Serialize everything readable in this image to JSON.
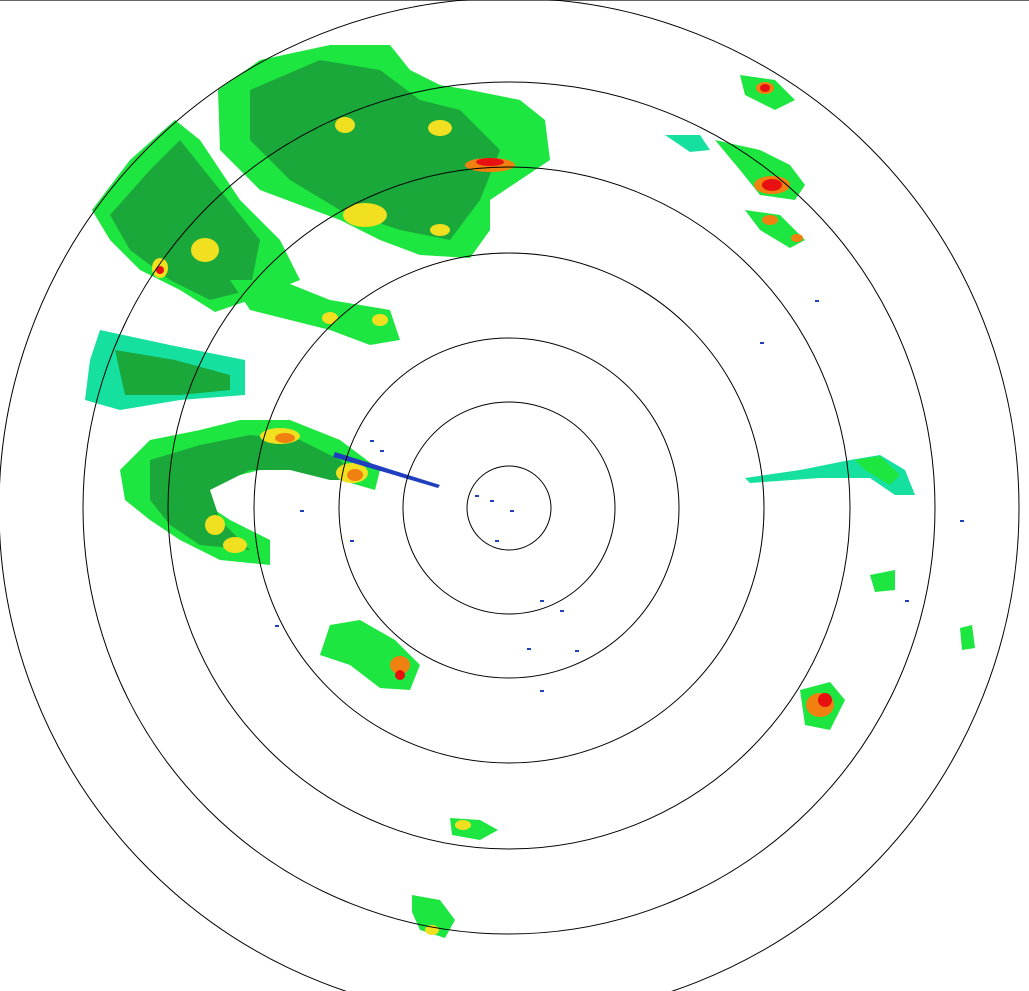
{
  "display": {
    "type": "radar-ppi",
    "range_rings": 7,
    "ring_color": "#000000",
    "frame_line_color": "#666666"
  },
  "reflectivity_palette": {
    "weak": "#1f3fbf",
    "light": "#16e0a0",
    "moderate_light": "#1ee640",
    "moderate": "#1aa83a",
    "heavy": "#f0e020",
    "very_heavy": "#f08010",
    "intense": "#e81010"
  }
}
